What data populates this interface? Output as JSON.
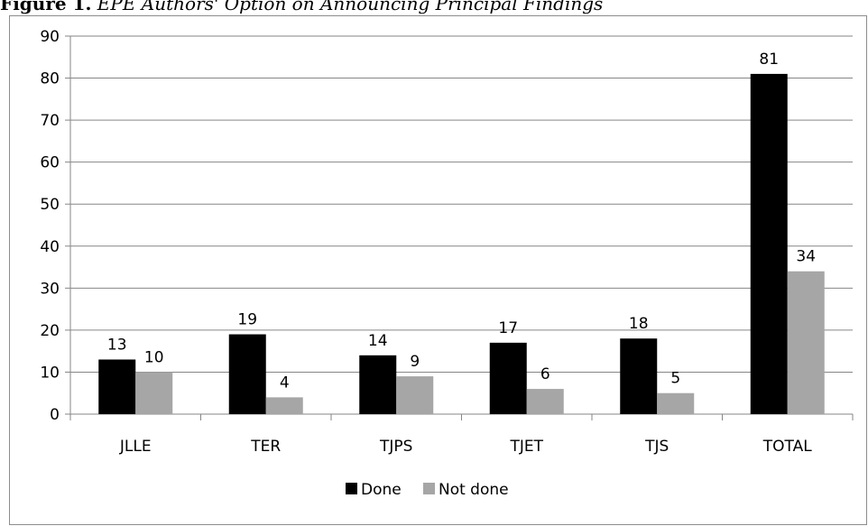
{
  "caption": {
    "prefix": "Figure 1.",
    "text": " EPE Authors' Option on Announcing Principal Findings"
  },
  "colors": {
    "done": "#000000",
    "not_done": "#a6a6a6",
    "axis": "#868686",
    "grid": "#868686"
  },
  "chart_data": {
    "type": "bar",
    "title": "",
    "xlabel": "",
    "ylabel": "",
    "categories": [
      "JLLE",
      "TER",
      "TJPS",
      "TJET",
      "TJS",
      "TOTAL"
    ],
    "series": [
      {
        "name": "Done",
        "values": [
          13,
          19,
          14,
          17,
          18,
          81
        ]
      },
      {
        "name": "Not done",
        "values": [
          10,
          4,
          9,
          6,
          5,
          34
        ]
      }
    ],
    "ylim": [
      0,
      90
    ],
    "yticks": [
      0,
      10,
      20,
      30,
      40,
      50,
      60,
      70,
      80,
      90
    ],
    "grid": true,
    "legend_position": "bottom",
    "data_labels": true
  }
}
